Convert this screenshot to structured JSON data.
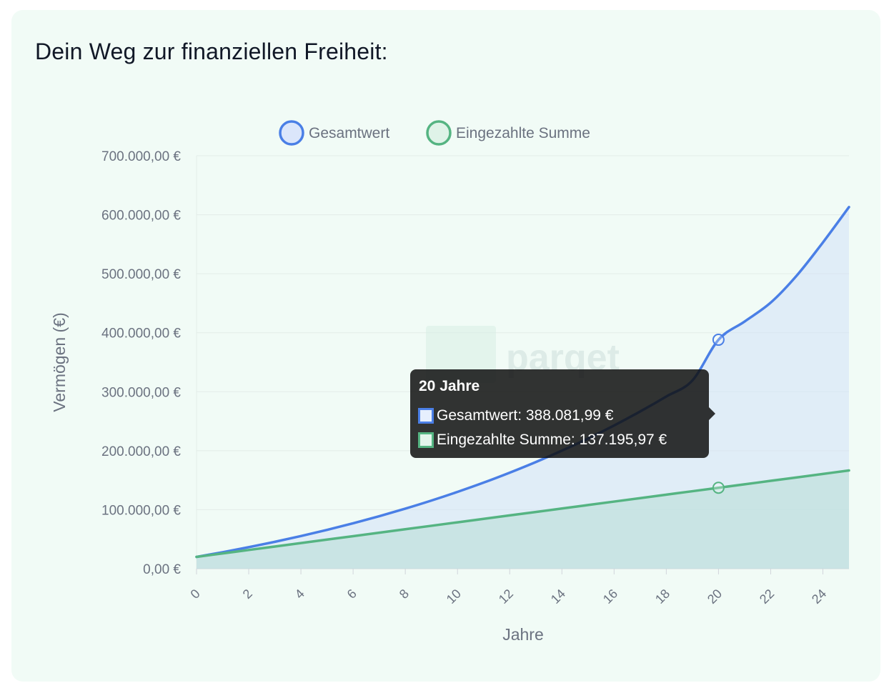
{
  "title": "Dein Weg zur finanziellen Freiheit:",
  "colors": {
    "total_line": "#4a7fe6",
    "total_fill": "rgba(210,225,248,0.55)",
    "paid_line": "#55b482",
    "paid_fill": "rgba(183,220,214,0.55)",
    "card_bg": "#f1fbf6"
  },
  "watermark": "parqet",
  "chart_data": {
    "type": "area",
    "xlabel": "Jahre",
    "ylabel": "Vermögen (€)",
    "x": [
      0,
      1,
      2,
      3,
      4,
      5,
      6,
      7,
      8,
      9,
      10,
      11,
      12,
      13,
      14,
      15,
      16,
      17,
      18,
      19,
      20,
      21,
      22,
      23,
      24,
      25
    ],
    "xticks": [
      "0",
      "2",
      "4",
      "6",
      "8",
      "10",
      "12",
      "14",
      "16",
      "18",
      "20",
      "22",
      "24"
    ],
    "ylim": [
      0,
      700000
    ],
    "yticks": [
      "0,00 €",
      "100.000,00 €",
      "200.000,00 €",
      "300.000,00 €",
      "400.000,00 €",
      "500.000,00 €",
      "600.000,00 €",
      "700.000,00 €"
    ],
    "grid": true,
    "legend_position": "top",
    "series": [
      {
        "name": "Gesamtwert",
        "color": "#4a7fe6",
        "values": [
          20000,
          27950,
          36450,
          45550,
          55300,
          65750,
          76950,
          88950,
          101800,
          115500,
          130200,
          145900,
          162800,
          180800,
          200100,
          220700,
          242800,
          266500,
          291900,
          319100,
          388082,
          419000,
          451000,
          497000,
          553000,
          613000
        ]
      },
      {
        "name": "Eingezahlte Summe",
        "color": "#55b482",
        "values": [
          20000,
          25860,
          31720,
          37580,
          43440,
          49300,
          55160,
          61020,
          66880,
          72740,
          78600,
          84460,
          90320,
          96180,
          102040,
          107900,
          113760,
          119620,
          125480,
          131340,
          137196,
          143050,
          148910,
          154770,
          160630,
          166490
        ]
      }
    ],
    "tooltip": {
      "title": "20 Jahre",
      "x_index": 20,
      "rows": [
        {
          "label": "Gesamtwert: 388.081,99 €",
          "color": "#4a7fe6"
        },
        {
          "label": "Eingezahlte Summe: 137.195,97 €",
          "color": "#55b482"
        }
      ]
    }
  }
}
